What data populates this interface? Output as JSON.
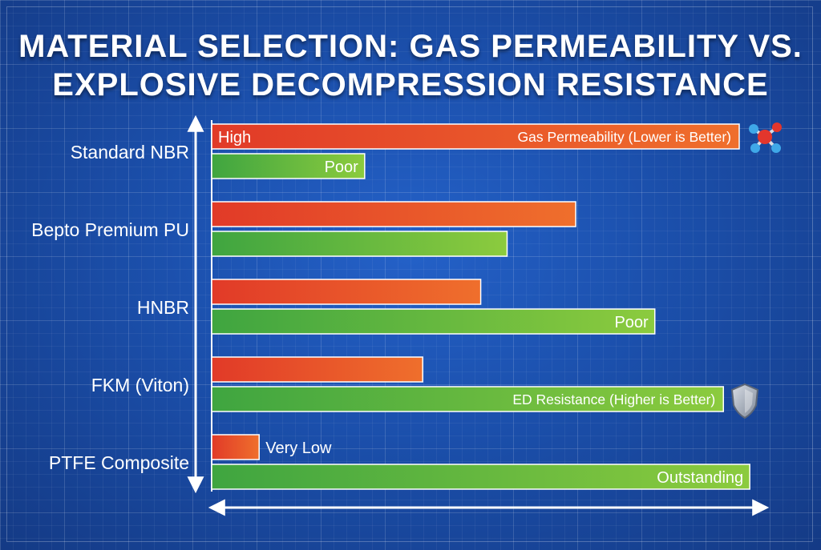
{
  "chart_data": {
    "type": "bar",
    "orientation": "horizontal",
    "title": "MATERIAL SELECTION: GAS PERMEABILITY VS. EXPLOSIVE DECOMPRESSION RESISTANCE",
    "title_lines": [
      "MATERIAL SELECTION: GAS PERMEABILITY VS.",
      "EXPLOSIVE DECOMPRESSION RESISTANCE"
    ],
    "categories": [
      "Standard NBR",
      "Bepto Premium PU",
      "HNBR",
      "FKM (Viton)",
      "PTFE Composite"
    ],
    "xlim": [
      0,
      100
    ],
    "series": [
      {
        "name": "Gas Permeability (Lower is Better)",
        "color": "#e8452a",
        "values": [
          100,
          69,
          51,
          40,
          9
        ]
      },
      {
        "name": "ED Resistance (Higher is Better)",
        "color": "#4fae3a",
        "values": [
          29,
          56,
          84,
          97,
          102
        ]
      }
    ],
    "annotations": [
      {
        "series": 0,
        "index": 0,
        "text": "High",
        "position": "inside-left"
      },
      {
        "series": 0,
        "index": 4,
        "text": "Very Low",
        "position": "outside-right"
      },
      {
        "series": 1,
        "index": 0,
        "text": "Poor",
        "position": "inside-right"
      },
      {
        "series": 1,
        "index": 2,
        "text": "Poor",
        "position": "inside-right"
      },
      {
        "series": 1,
        "index": 4,
        "text": "Outstanding",
        "position": "inside-right"
      }
    ],
    "legend": [
      {
        "series": 0,
        "text": "Gas Permeability (Lower is Better)",
        "icon": "molecule-icon"
      },
      {
        "series": 1,
        "text": "ED Resistance (Higher is Better)",
        "icon": "shield-icon"
      }
    ],
    "grid": true
  }
}
